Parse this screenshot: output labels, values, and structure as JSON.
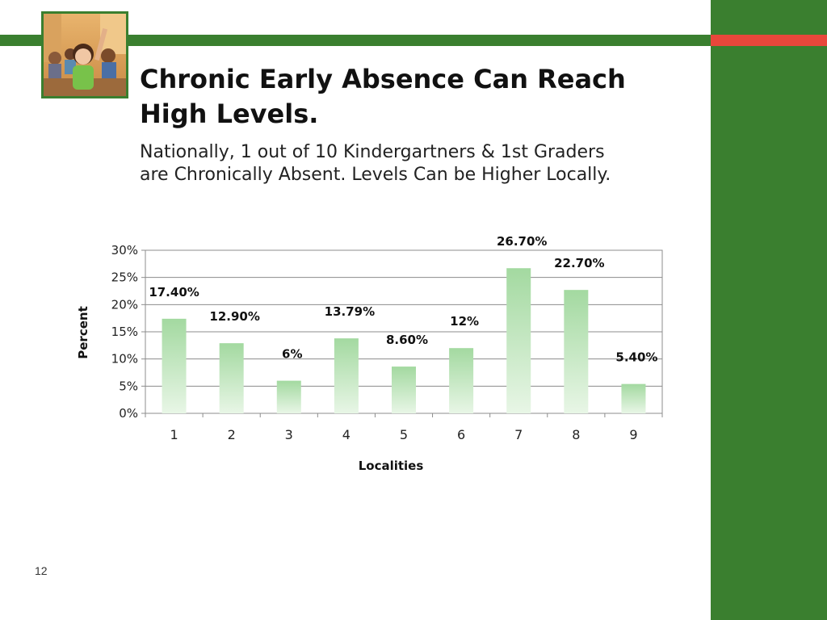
{
  "slide": {
    "title": "Chronic Early Absence Can Reach High Levels.",
    "subtitle_line1": "Nationally, 1 out of 10 Kindergartners & 1st Graders",
    "subtitle_line2": "are Chronically Absent.  Levels Can be Higher Locally.",
    "page_number": "12"
  },
  "colors": {
    "brand_green": "#3a7f2f",
    "accent_red": "#e8473b",
    "bar_top": "#a3d9a0",
    "bar_bottom": "#e8f6e6"
  },
  "chart_data": {
    "type": "bar",
    "categories": [
      "1",
      "2",
      "3",
      "4",
      "5",
      "6",
      "7",
      "8",
      "9"
    ],
    "values": [
      17.4,
      12.9,
      6,
      13.79,
      8.6,
      12,
      26.7,
      22.7,
      5.4
    ],
    "data_labels": [
      "17.40%",
      "12.90%",
      "6%",
      "13.79%",
      "8.60%",
      "12%",
      "26.70%",
      "22.70%",
      "5.40%"
    ],
    "y_ticks": [
      "0%",
      "5%",
      "10%",
      "15%",
      "20%",
      "25%",
      "30%"
    ],
    "ylim": [
      0,
      30
    ],
    "xlabel": "Localities",
    "ylabel": "Percent",
    "grid": true,
    "legend": "none"
  }
}
